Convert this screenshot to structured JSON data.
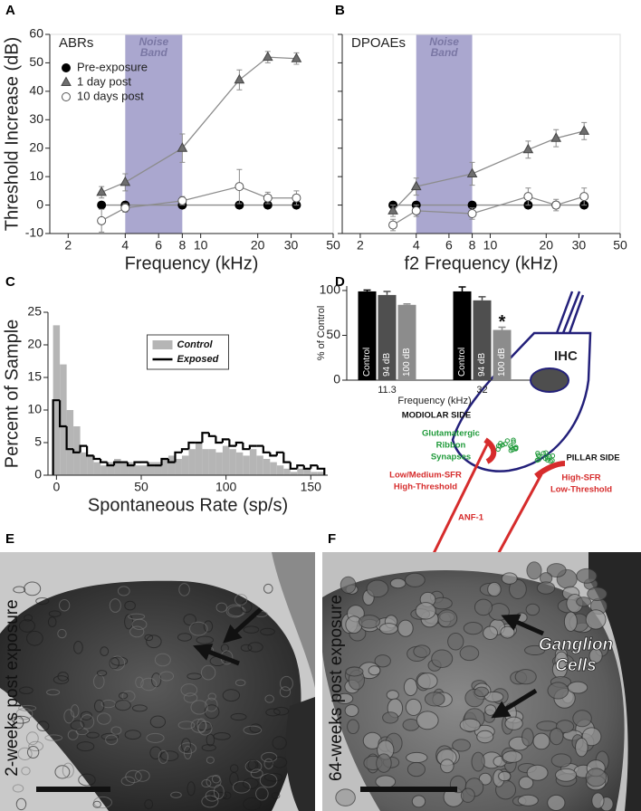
{
  "panel_labels": [
    "A",
    "B",
    "C",
    "D",
    "E",
    "F"
  ],
  "chart_data": [
    {
      "type": "line",
      "title": "ABRs",
      "xlabel": "Frequency (kHz)",
      "ylabel": "Threshold Increase (dB)",
      "xlog": true,
      "xlim": [
        1.6,
        50
      ],
      "xticks": [
        2,
        4,
        6,
        8,
        10,
        20,
        30,
        50
      ],
      "ylim": [
        -10,
        60
      ],
      "yticks": [
        -10,
        0,
        10,
        20,
        30,
        40,
        50,
        60
      ],
      "show_ytick_labels": true,
      "band": {
        "range": [
          4,
          8
        ],
        "label": [
          "Noise",
          "Band"
        ],
        "color": "#aaa7cf"
      },
      "x": [
        3,
        4,
        8,
        16,
        22.6,
        32
      ],
      "series": [
        {
          "name": "Pre-exposure",
          "marker": "circle",
          "color": "#000000",
          "values": [
            0,
            0,
            0,
            0,
            0,
            0
          ]
        },
        {
          "name": "1 day post",
          "marker": "triangle",
          "color": "#6e6e6e",
          "values": [
            4.5,
            8,
            20,
            44,
            52,
            51.5
          ],
          "errors": [
            2,
            3,
            5,
            3.5,
            2,
            2
          ]
        },
        {
          "name": "10 days post",
          "marker": "circle",
          "color": "#ffffff",
          "values": [
            -5.5,
            -1,
            1.5,
            6.5,
            2.5,
            2.5
          ],
          "errors": [
            4,
            1.5,
            1.5,
            6,
            2,
            2.5
          ]
        }
      ]
    },
    {
      "type": "line",
      "title": "DPOAEs",
      "xlabel": "f2 Frequency (kHz)",
      "xlog": true,
      "xlim": [
        1.6,
        50
      ],
      "xticks": [
        2,
        4,
        6,
        8,
        10,
        20,
        30,
        50
      ],
      "ylim": [
        -10,
        60
      ],
      "yticks": [
        -10,
        0,
        10,
        20,
        30,
        40,
        50,
        60
      ],
      "show_ytick_labels": false,
      "band": {
        "range": [
          4,
          8
        ],
        "label": [
          "Noise",
          "Band"
        ],
        "color": "#aaa7cf"
      },
      "x": [
        3,
        4,
        8,
        16,
        22.6,
        32
      ],
      "series": [
        {
          "marker": "circle",
          "color": "#000000",
          "values": [
            0,
            0,
            0,
            0,
            0,
            0
          ]
        },
        {
          "marker": "triangle",
          "color": "#6e6e6e",
          "values": [
            -2,
            6.5,
            11,
            19.5,
            23.5,
            26
          ],
          "errors": [
            2,
            3,
            4,
            3,
            3,
            3
          ]
        },
        {
          "marker": "circle",
          "color": "#ffffff",
          "values": [
            -7,
            -2,
            -3,
            3,
            0,
            3
          ],
          "errors": [
            2,
            2,
            2,
            3,
            2,
            3
          ]
        }
      ]
    },
    {
      "type": "histogram",
      "xlabel": "Spontaneous Rate (sp/s)",
      "ylabel": "Percent of Sample",
      "xlim": [
        -5,
        160
      ],
      "xticks": [
        0,
        50,
        100,
        150
      ],
      "ylim": [
        0,
        25
      ],
      "yticks": [
        0,
        5,
        10,
        15,
        20,
        25
      ],
      "legend": "upper center",
      "bins": [
        -2,
        2,
        6,
        10,
        14,
        18,
        22,
        26,
        30,
        34,
        38,
        42,
        46,
        50,
        54,
        58,
        62,
        66,
        70,
        74,
        78,
        82,
        86,
        90,
        94,
        98,
        102,
        106,
        110,
        114,
        118,
        122,
        126,
        130,
        134,
        138,
        142,
        146,
        150,
        154,
        158
      ],
      "series": [
        {
          "name": "Control",
          "style": "fill",
          "color": "#b5b5b5",
          "values": [
            23,
            17,
            10,
            7.5,
            3.5,
            3,
            2,
            1.5,
            2,
            2.5,
            2,
            2,
            1.5,
            1.5,
            2,
            2,
            2.5,
            3,
            2.5,
            3,
            4,
            5,
            4,
            4,
            3.5,
            4.5,
            4,
            3.5,
            3,
            4,
            3,
            2.5,
            2,
            1.5,
            1,
            0.5,
            1,
            1,
            0.5,
            0.5
          ]
        },
        {
          "name": "Exposed",
          "style": "step",
          "color": "#000000",
          "values": [
            11.5,
            7.5,
            4,
            3.5,
            4.5,
            3,
            2.5,
            2,
            1.5,
            2,
            2,
            1.5,
            2,
            2,
            1.5,
            1.5,
            2.5,
            2,
            3.5,
            4,
            5,
            5,
            6.5,
            6,
            5,
            5.5,
            4.5,
            5,
            4,
            4.5,
            4.5,
            3.5,
            3,
            3.5,
            2,
            1,
            1.5,
            1,
            1.5,
            1
          ]
        }
      ]
    },
    {
      "type": "bar",
      "xlabel": "Frequency (kHz)",
      "ylabel": "% of Control",
      "categories": [
        "11.3",
        "32"
      ],
      "ylim": [
        0,
        105
      ],
      "yticks": [
        0,
        50,
        100
      ],
      "annotation": "*",
      "series": [
        {
          "name": "Control",
          "color": "#000000",
          "values": [
            99,
            99
          ],
          "errors": [
            1.5,
            5
          ]
        },
        {
          "name": "94 dB",
          "color": "#4f4f4f",
          "values": [
            95,
            89
          ],
          "errors": [
            4,
            4
          ]
        },
        {
          "name": "100 dB",
          "color": "#8c8c8c",
          "values": [
            84,
            56
          ],
          "errors": [
            1,
            3
          ]
        }
      ]
    }
  ],
  "diagram": {
    "cell_label": "IHC",
    "modiolar_side": "MODIOLAR SIDE",
    "pillar_side": "PILLAR SIDE",
    "synapses": [
      "Glutamatergic",
      "Ribbon",
      "Synapses"
    ],
    "low_sfr_fiber": [
      "Low/Medium-SFR",
      "High-Threshold"
    ],
    "high_sfr_fiber": [
      "High-SFR",
      "Low-Threshold"
    ],
    "fiber_name": "ANF-1"
  },
  "micrographs": [
    {
      "caption": "2-weeks post exposure"
    },
    {
      "caption": "64-weeks post exposure",
      "annotation": [
        "Ganglion",
        "Cells"
      ]
    }
  ]
}
